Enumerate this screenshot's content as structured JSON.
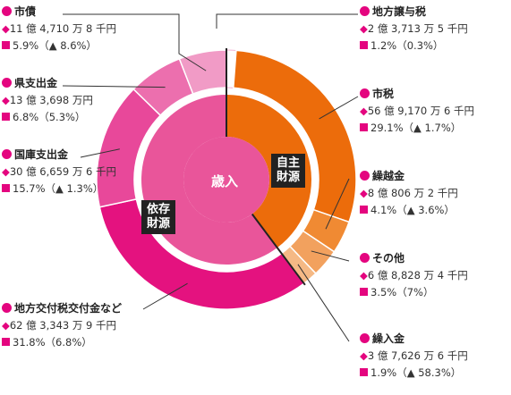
{
  "chart_data": {
    "type": "pie",
    "center_label": "歳入",
    "groups": [
      {
        "name": "自主財源",
        "color": "#ec6c0b"
      },
      {
        "name": "依存財源",
        "color": "#e9559a"
      }
    ],
    "slices": [
      {
        "name": "地方譲与税",
        "value": 1.2,
        "amount": "2 億 3,713 万 5 千円",
        "pct_label": "1.2%（0.3%）",
        "color": "#ffffff",
        "group": 0
      },
      {
        "name": "市税",
        "value": 29.1,
        "amount": "56 億 9,170 万 6 千円",
        "pct_label": "29.1%（▲ 1.7%）",
        "color": "#ec6c0b",
        "group": 0
      },
      {
        "name": "繰越金",
        "value": 4.1,
        "amount": "8 億 806 万 2 千円",
        "pct_label": "4.1%（▲ 3.6%）",
        "color": "#f08a33",
        "group": 0
      },
      {
        "name": "その他",
        "value": 3.5,
        "amount": "6 億 8,828 万 4 千円",
        "pct_label": "3.5%（7%）",
        "color": "#f2a15e",
        "group": 0
      },
      {
        "name": "繰入金",
        "value": 1.9,
        "amount": "3 億 7,626 万 6 千円",
        "pct_label": "1.9%（▲ 58.3%）",
        "color": "#f5b985",
        "group": 0
      },
      {
        "name": "地方交付税交付金など",
        "value": 31.8,
        "amount": "62 億 3,343 万 9 千円",
        "pct_label": "31.8%（6.8%）",
        "color": "#e4127f",
        "group": 1
      },
      {
        "name": "国庫支出金",
        "value": 15.7,
        "amount": "30 億 6,659 万 6 千円",
        "pct_label": "15.7%（▲ 1.3%）",
        "color": "#e8489a",
        "group": 1
      },
      {
        "name": "県支出金",
        "value": 6.8,
        "amount": "13 億 3,698 万円",
        "pct_label": "6.8%（5.3%）",
        "color": "#ec6fae",
        "group": 1
      },
      {
        "name": "市債",
        "value": 5.9,
        "amount": "11 億 4,710 万 8 千円",
        "pct_label": "5.9%（▲ 8.6%）",
        "color": "#f19bc6",
        "group": 1
      }
    ]
  }
}
